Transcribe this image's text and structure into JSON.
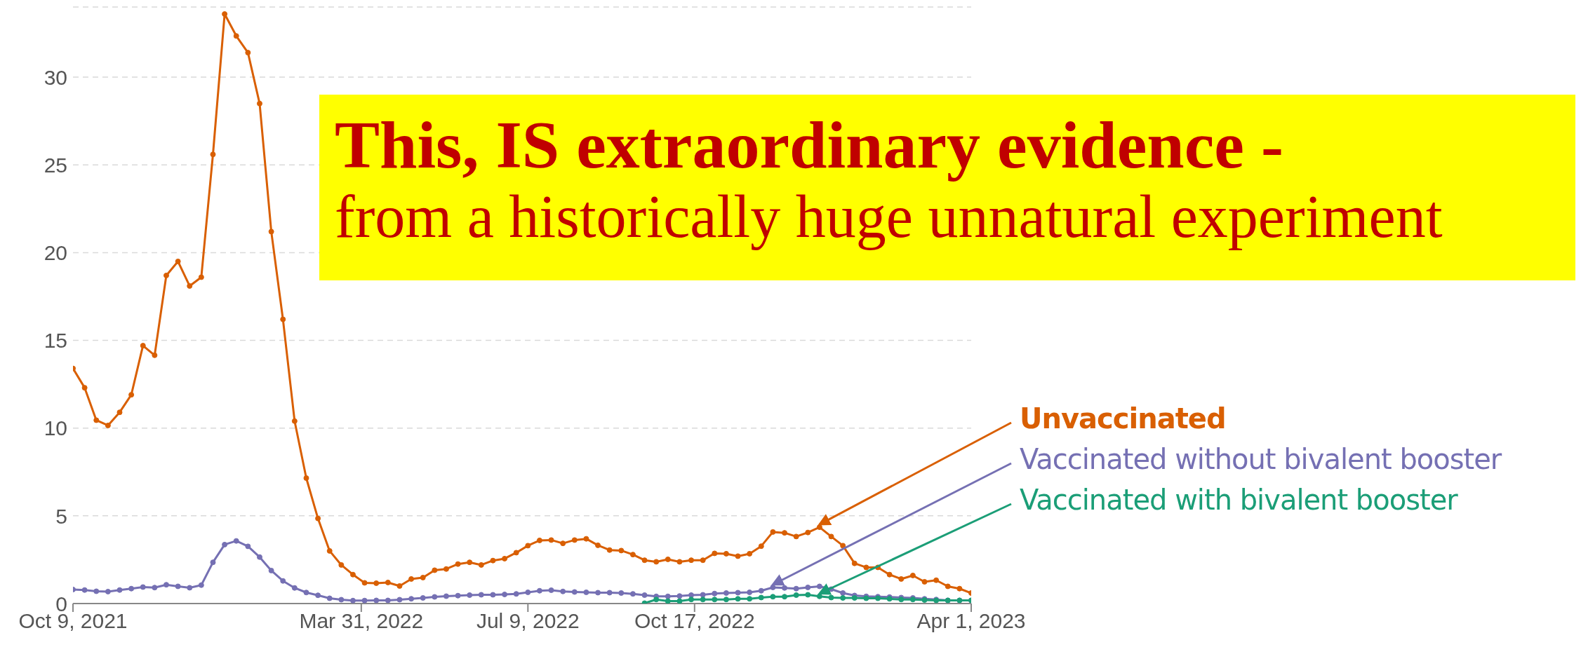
{
  "chart_data": {
    "type": "line",
    "annotations": [
      "This, IS extraordinary evidence -",
      "from a historically huge unnatural experiment"
    ],
    "x": [
      "2021-10-09",
      "2021-10-16",
      "2021-10-23",
      "2021-10-30",
      "2021-11-06",
      "2021-11-13",
      "2021-11-20",
      "2021-11-27",
      "2021-12-04",
      "2021-12-11",
      "2021-12-18",
      "2021-12-25",
      "2022-01-01",
      "2022-01-08",
      "2022-01-15",
      "2022-01-22",
      "2022-01-29",
      "2022-02-05",
      "2022-02-12",
      "2022-02-19",
      "2022-02-26",
      "2022-03-05",
      "2022-03-12",
      "2022-03-19",
      "2022-03-26",
      "2022-04-02",
      "2022-04-09",
      "2022-04-16",
      "2022-04-23",
      "2022-04-30",
      "2022-05-07",
      "2022-05-14",
      "2022-05-21",
      "2022-05-28",
      "2022-06-04",
      "2022-06-11",
      "2022-06-18",
      "2022-06-25",
      "2022-07-02",
      "2022-07-09",
      "2022-07-16",
      "2022-07-23",
      "2022-07-30",
      "2022-08-06",
      "2022-08-13",
      "2022-08-20",
      "2022-08-27",
      "2022-09-03",
      "2022-09-10",
      "2022-09-17",
      "2022-09-24",
      "2022-10-01",
      "2022-10-08",
      "2022-10-15",
      "2022-10-22",
      "2022-10-29",
      "2022-11-05",
      "2022-11-12",
      "2022-11-19",
      "2022-11-26",
      "2022-12-03",
      "2022-12-10",
      "2022-12-17",
      "2022-12-24",
      "2022-12-31",
      "2023-01-07",
      "2023-01-14",
      "2023-01-21",
      "2023-01-28",
      "2023-02-04",
      "2023-02-11",
      "2023-02-18",
      "2023-02-25",
      "2023-03-04",
      "2023-03-11",
      "2023-03-18",
      "2023-03-25",
      "2023-04-01"
    ],
    "series": [
      {
        "name": "Unvaccinated",
        "color": "#d95f02",
        "values": [
          13.4,
          12.3,
          10.45,
          10.15,
          10.9,
          11.9,
          14.7,
          14.15,
          18.7,
          19.5,
          18.1,
          18.6,
          25.6,
          33.6,
          32.35,
          31.4,
          28.5,
          21.2,
          16.2,
          10.4,
          7.15,
          4.85,
          3.0,
          2.2,
          1.65,
          1.18,
          1.16,
          1.2,
          1.0,
          1.4,
          1.48,
          1.9,
          1.97,
          2.25,
          2.35,
          2.2,
          2.45,
          2.56,
          2.9,
          3.3,
          3.6,
          3.62,
          3.43,
          3.62,
          3.69,
          3.32,
          3.05,
          3.02,
          2.79,
          2.47,
          2.38,
          2.52,
          2.38,
          2.47,
          2.47,
          2.86,
          2.84,
          2.7,
          2.84,
          3.27,
          4.08,
          4.03,
          3.82,
          4.05,
          4.35,
          3.82,
          3.3,
          2.29,
          2.06,
          2.06,
          1.65,
          1.4,
          1.6,
          1.24,
          1.33,
          0.98,
          0.85,
          0.6
        ]
      },
      {
        "name": "Vaccinated without bivalent booster",
        "color": "#7570b3",
        "values": [
          0.8,
          0.77,
          0.7,
          0.68,
          0.77,
          0.85,
          0.94,
          0.91,
          1.07,
          0.98,
          0.9,
          1.05,
          2.35,
          3.36,
          3.57,
          3.26,
          2.65,
          1.88,
          1.29,
          0.89,
          0.63,
          0.47,
          0.3,
          0.22,
          0.17,
          0.17,
          0.18,
          0.18,
          0.22,
          0.27,
          0.32,
          0.38,
          0.42,
          0.45,
          0.48,
          0.5,
          0.5,
          0.52,
          0.55,
          0.64,
          0.73,
          0.76,
          0.69,
          0.66,
          0.64,
          0.62,
          0.62,
          0.6,
          0.55,
          0.48,
          0.41,
          0.41,
          0.43,
          0.48,
          0.5,
          0.57,
          0.6,
          0.62,
          0.64,
          0.73,
          0.92,
          0.89,
          0.85,
          0.92,
          0.98,
          0.82,
          0.6,
          0.46,
          0.41,
          0.39,
          0.37,
          0.34,
          0.32,
          0.27,
          0.23,
          0.18,
          0.18,
          0.18
        ]
      },
      {
        "name": "Vaccinated with bivalent booster",
        "color": "#1b9e77",
        "values": [
          null,
          null,
          null,
          null,
          null,
          null,
          null,
          null,
          null,
          null,
          null,
          null,
          null,
          null,
          null,
          null,
          null,
          null,
          null,
          null,
          null,
          null,
          null,
          null,
          null,
          null,
          null,
          null,
          null,
          null,
          null,
          null,
          null,
          null,
          null,
          null,
          null,
          null,
          null,
          null,
          null,
          null,
          null,
          null,
          null,
          null,
          null,
          null,
          null,
          0.02,
          0.23,
          0.14,
          0.14,
          0.23,
          0.23,
          0.23,
          0.23,
          0.27,
          0.27,
          0.34,
          0.39,
          0.39,
          0.48,
          0.5,
          0.41,
          0.34,
          0.32,
          0.32,
          0.3,
          0.3,
          0.27,
          0.23,
          0.23,
          0.2,
          0.18,
          0.18,
          0.18,
          0.18
        ]
      }
    ],
    "xlim": [
      "2021-10-09",
      "2023-04-01"
    ],
    "xticks": [
      {
        "value": "2021-10-09",
        "label": "Oct 9, 2021"
      },
      {
        "value": "2022-03-31",
        "label": "Mar 31, 2022"
      },
      {
        "value": "2022-07-09",
        "label": "Jul 9, 2022"
      },
      {
        "value": "2022-10-17",
        "label": "Oct 17, 2022"
      },
      {
        "value": "2023-04-01",
        "label": "Apr 1, 2023"
      }
    ],
    "ylim": [
      0,
      34
    ],
    "yticks": [
      0,
      5,
      10,
      15,
      20,
      25,
      30
    ],
    "grid": "y",
    "legend": "right",
    "marker": "circle",
    "line_style": "solid"
  }
}
